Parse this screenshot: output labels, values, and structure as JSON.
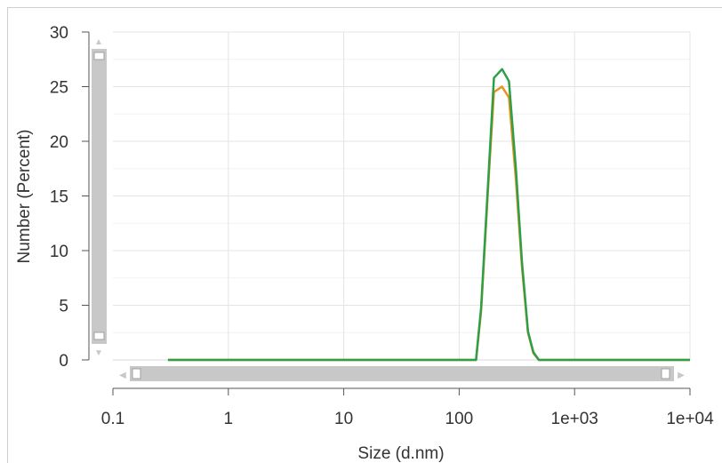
{
  "chart_data": {
    "type": "line",
    "xlabel": "Size (d.nm)",
    "ylabel": "Number (Percent)",
    "x_scale": "log",
    "xlim": [
      0.1,
      10000
    ],
    "ylim": [
      0,
      30
    ],
    "x_tick_labels": [
      "0.1",
      "1",
      "10",
      "100",
      "1e+03",
      "1e+04"
    ],
    "y_tick_labels": [
      "0",
      "5",
      "10",
      "15",
      "20",
      "25",
      "30"
    ],
    "grid": true,
    "legend": "none",
    "series": [
      {
        "color": "#e8921f",
        "x": [
          0.3,
          100,
          140,
          155,
          180,
          200,
          235,
          270,
          310,
          350,
          395,
          440,
          490,
          530,
          10000
        ],
        "y": [
          0,
          0,
          0,
          4.5,
          16.5,
          24.5,
          25.0,
          24.0,
          16.5,
          8.5,
          2.5,
          0.6,
          0,
          0,
          0
        ]
      },
      {
        "color": "#2e9e47",
        "x": [
          0.3,
          100,
          140,
          155,
          180,
          200,
          235,
          270,
          310,
          350,
          395,
          440,
          490,
          530,
          10000
        ],
        "y": [
          0,
          0,
          0,
          4.8,
          17.0,
          25.8,
          26.6,
          25.5,
          17.5,
          9.0,
          2.6,
          0.7,
          0,
          0,
          0
        ]
      }
    ]
  },
  "scrollbars": {
    "vertical": {
      "up_arrow": "▲",
      "down_arrow": "▼"
    },
    "horizontal": {
      "left_arrow": "◀",
      "right_arrow": "▶"
    }
  }
}
